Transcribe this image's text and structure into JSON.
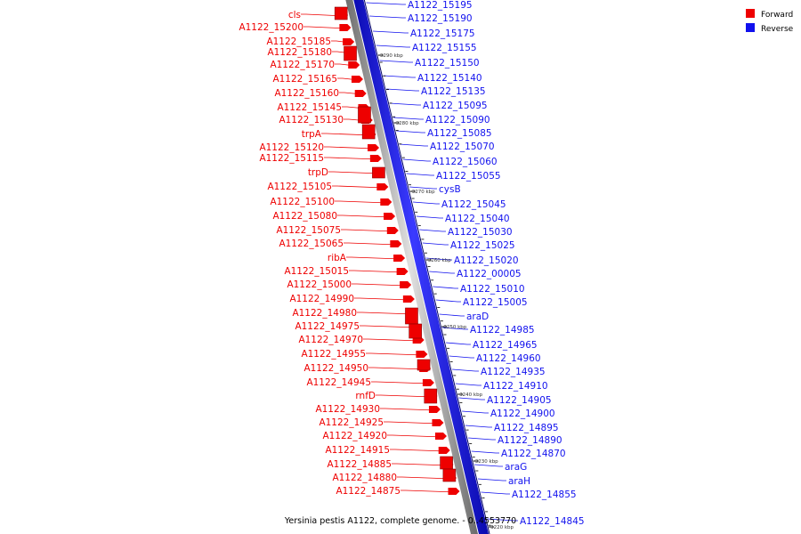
{
  "title": "Yersinia pestis A1122, complete genome. - 0..4553770",
  "legend": [
    {
      "label": "Forward",
      "color": "#ee0000"
    },
    {
      "label": "Reverse",
      "color": "#1111ee"
    }
  ],
  "colors": {
    "forward": "#ee0000",
    "reverse": "#1111ee",
    "backbone": "#888888"
  },
  "ticks": [
    "3290 kbp",
    "3280 kbp",
    "3270 kbp",
    "3260 kbp",
    "3250 kbp",
    "3240 kbp",
    "3230 kbp",
    "3220 kbp"
  ],
  "forward_labels": [
    "cls",
    "A1122_15200",
    "A1122_15185",
    "A1122_15180",
    "A1122_15170",
    "A1122_15165",
    "A1122_15160",
    "A1122_15145",
    "A1122_15130",
    "trpA",
    "A1122_15120",
    "A1122_15115",
    "trpD",
    "A1122_15105",
    "A1122_15100",
    "A1122_15080",
    "A1122_15075",
    "A1122_15065",
    "ribA",
    "A1122_15015",
    "A1122_15000",
    "A1122_14990",
    "A1122_14980",
    "A1122_14975",
    "A1122_14970",
    "A1122_14955",
    "A1122_14950",
    "A1122_14945",
    "rnfD",
    "A1122_14930",
    "A1122_14925",
    "A1122_14920",
    "A1122_14915",
    "A1122_14885",
    "A1122_14880",
    "A1122_14875"
  ],
  "reverse_labels": [
    "A1122_15195",
    "A1122_15190",
    "A1122_15175",
    "A1122_15155",
    "A1122_15150",
    "A1122_15140",
    "A1122_15135",
    "A1122_15095",
    "A1122_15090",
    "A1122_15085",
    "A1122_15070",
    "A1122_15060",
    "A1122_15055",
    "cysB",
    "A1122_15045",
    "A1122_15040",
    "A1122_15030",
    "A1122_15025",
    "A1122_15020",
    "A1122_00005",
    "A1122_15010",
    "A1122_15005",
    "araD",
    "A1122_14985",
    "A1122_14965",
    "A1122_14960",
    "A1122_14935",
    "A1122_14910",
    "A1122_14905",
    "A1122_14900",
    "A1122_14895",
    "A1122_14890",
    "A1122_14870",
    "araG",
    "araH",
    "A1122_14855",
    "A1122_14845"
  ]
}
